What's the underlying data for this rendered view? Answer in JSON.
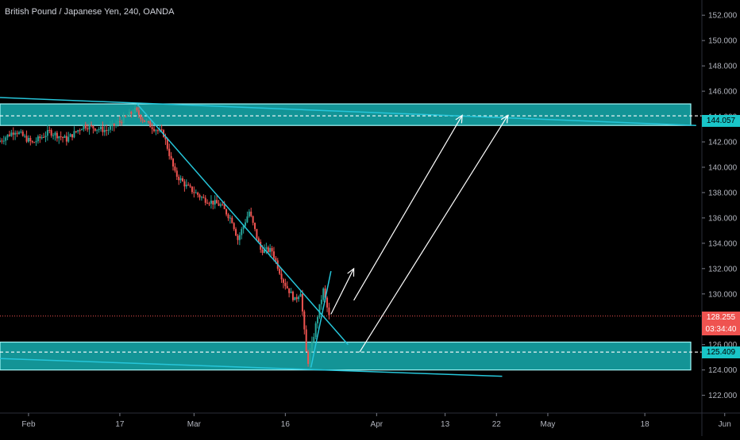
{
  "header": {
    "title": "British Pound / Japanese Yen, 240, OANDA"
  },
  "price_tags": {
    "last_price": "128.255",
    "countdown": "03:34:40",
    "upper_zone_price": "144.057",
    "lower_zone_price": "125.409"
  },
  "colors": {
    "background": "#000000",
    "zone_fill": "#19c5c8",
    "trendline": "#26c6da",
    "bull_candle": "#26a69a",
    "bear_candle": "#ef5350",
    "last_price_tag": "#ef5350",
    "arrow": "#ffffff",
    "axis_text": "#b2b5be"
  },
  "chart_data": {
    "type": "candlestick",
    "symbol": "British Pound / Japanese Yen",
    "interval": "240",
    "source": "OANDA",
    "ylim": [
      120.6,
      153.2
    ],
    "x_domain_days": [
      -1,
      122
    ],
    "x_ticks": [
      {
        "label": "Feb",
        "day": 4
      },
      {
        "label": "17",
        "day": 20
      },
      {
        "label": "Mar",
        "day": 33
      },
      {
        "label": "16",
        "day": 49
      },
      {
        "label": "Apr",
        "day": 65
      },
      {
        "label": "13",
        "day": 77
      },
      {
        "label": "22",
        "day": 86
      },
      {
        "label": "May",
        "day": 95
      },
      {
        "label": "18",
        "day": 112
      },
      {
        "label": "Jun",
        "day": 126
      }
    ],
    "y_ticks": [
      122,
      124,
      126,
      128,
      130,
      132,
      134,
      136,
      138,
      140,
      142,
      144,
      146,
      148,
      150,
      152
    ],
    "y_tick_labels": [
      "122.000",
      "124.000",
      "126.000",
      "128.000",
      "130.000",
      "132.000",
      "134.000",
      "136.000",
      "138.000",
      "140.000",
      "142.000",
      "144.000",
      "146.000",
      "148.000",
      "150.000",
      "152.000"
    ],
    "price_path": [
      {
        "day": -1,
        "price": 142.0
      },
      {
        "day": 2,
        "price": 142.9
      },
      {
        "day": 5,
        "price": 141.9
      },
      {
        "day": 8,
        "price": 142.8
      },
      {
        "day": 11,
        "price": 142.2
      },
      {
        "day": 14,
        "price": 143.3
      },
      {
        "day": 18,
        "price": 142.9
      },
      {
        "day": 21,
        "price": 143.8
      },
      {
        "day": 23,
        "price": 144.5
      },
      {
        "day": 25,
        "price": 143.5
      },
      {
        "day": 28,
        "price": 142.6
      },
      {
        "day": 30,
        "price": 139.5
      },
      {
        "day": 32,
        "price": 138.5
      },
      {
        "day": 35,
        "price": 137.5
      },
      {
        "day": 38,
        "price": 137.0
      },
      {
        "day": 40,
        "price": 135.8
      },
      {
        "day": 41,
        "price": 134.3
      },
      {
        "day": 43,
        "price": 136.5
      },
      {
        "day": 45,
        "price": 133.5
      },
      {
        "day": 47,
        "price": 133.4
      },
      {
        "day": 49,
        "price": 131.0
      },
      {
        "day": 51,
        "price": 129.5
      },
      {
        "day": 52,
        "price": 130.2
      },
      {
        "day": 53.2,
        "price": 124.4
      },
      {
        "day": 54,
        "price": 126.0
      },
      {
        "day": 55,
        "price": 128.3
      },
      {
        "day": 56,
        "price": 130.3
      },
      {
        "day": 57,
        "price": 128.2
      }
    ],
    "horizontal_zones": [
      {
        "from": 143.3,
        "to": 145.0,
        "mid": 144.057
      },
      {
        "from": 124.0,
        "to": 126.2,
        "mid": 125.409
      }
    ],
    "trendlines": [
      {
        "from": {
          "day": -1,
          "price": 145.5
        },
        "to": {
          "day": 121,
          "price": 143.3
        }
      },
      {
        "from": {
          "day": 23,
          "price": 145.0
        },
        "to": {
          "day": 60,
          "price": 126.0
        }
      },
      {
        "from": {
          "day": -1,
          "price": 124.9
        },
        "to": {
          "day": 87,
          "price": 123.5
        }
      },
      {
        "from": {
          "day": 53.5,
          "price": 124.2
        },
        "to": {
          "day": 57,
          "price": 131.8
        }
      }
    ],
    "arrows": [
      {
        "from": {
          "day": 57,
          "price": 128.4
        },
        "to": {
          "day": 61,
          "price": 132.0
        },
        "head": "open"
      },
      {
        "from": {
          "day": 61,
          "price": 129.5
        },
        "to": {
          "day": 80,
          "price": 144.1
        },
        "head": "open"
      },
      {
        "from": {
          "day": 62,
          "price": 125.4
        },
        "to": {
          "day": 88,
          "price": 144.1
        },
        "head": "open"
      }
    ],
    "last_price": 128.255
  }
}
